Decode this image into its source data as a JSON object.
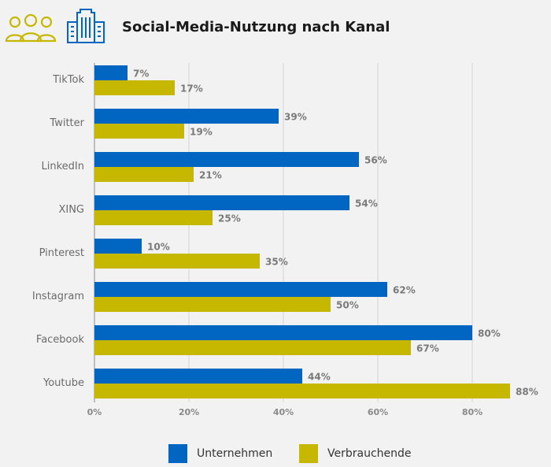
{
  "header": {
    "title": "Social-Media-Nutzung nach Kanal",
    "people_icon": "people-group-icon",
    "building_icon": "office-building-icon"
  },
  "colors": {
    "unternehmen": "#0066c2",
    "verbrauchende": "#c6b800",
    "people_icon": "#c6b800",
    "building_icon": "#0066c2"
  },
  "chart_data": {
    "type": "bar",
    "orientation": "horizontal",
    "title": "Social-Media-Nutzung nach Kanal",
    "categories": [
      "TikTok",
      "Twitter",
      "LinkedIn",
      "XING",
      "Pinterest",
      "Instagram",
      "Facebook",
      "Youtube"
    ],
    "series": [
      {
        "name": "Unternehmen",
        "values": [
          7,
          39,
          56,
          54,
          10,
          62,
          80,
          44
        ]
      },
      {
        "name": "Verbrauchende",
        "values": [
          17,
          19,
          21,
          25,
          35,
          50,
          67,
          88
        ]
      }
    ],
    "xlim": [
      0,
      90
    ],
    "xticks": [
      0,
      20,
      40,
      60,
      80
    ],
    "xtick_labels": [
      "0%",
      "20%",
      "40%",
      "60%",
      "80%"
    ],
    "value_suffix": "%",
    "grid": true,
    "legend_position": "bottom"
  },
  "legend": {
    "items": [
      {
        "label": "Unternehmen"
      },
      {
        "label": "Verbrauchende"
      }
    ]
  }
}
